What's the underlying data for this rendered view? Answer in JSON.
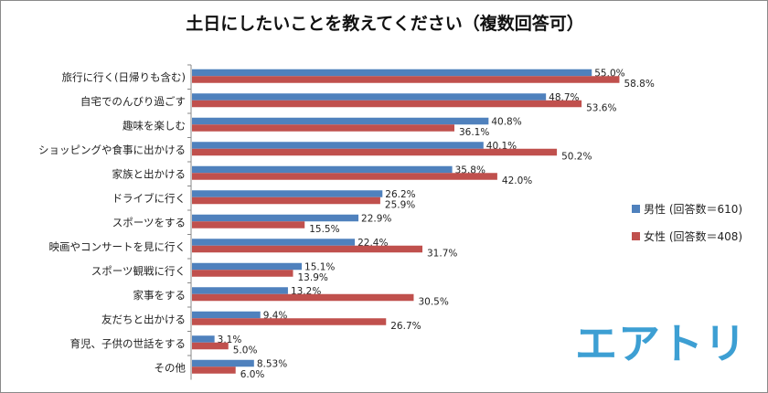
{
  "chart_data": {
    "type": "bar",
    "orientation": "horizontal",
    "title": "土日にしたいことを教えてください（複数回答可）",
    "categories": [
      "旅行に行く(日帰りも含む)",
      "自宅でのんびり過ごす",
      "趣味を楽しむ",
      "ショッピングや食事に出かける",
      "家族と出かける",
      "ドライブに行く",
      "スポーツをする",
      "映画やコンサートを見に行く",
      "スポーツ観戦に行く",
      "家事をする",
      "友だちと出かける",
      "育児、子供の世話をする",
      "その他"
    ],
    "series": [
      {
        "name": "男性 (回答数＝610)",
        "color": "#4f81bd",
        "values": [
          55.0,
          48.7,
          40.8,
          40.1,
          35.8,
          26.2,
          22.9,
          22.4,
          15.1,
          13.2,
          9.4,
          3.1,
          8.53
        ],
        "labels": [
          "55.0%",
          "48.7%",
          "40.8%",
          "40.1%",
          "35.8%",
          "26.2%",
          "22.9%",
          "22.4%",
          "15.1%",
          "13.2%",
          "9.4%",
          "3.1%",
          "8.53%"
        ]
      },
      {
        "name": "女性 (回答数＝408)",
        "color": "#c0504d",
        "values": [
          58.8,
          53.6,
          36.1,
          50.2,
          42.0,
          25.9,
          15.5,
          31.7,
          13.9,
          30.5,
          26.7,
          5.0,
          6.0
        ],
        "labels": [
          "58.8%",
          "53.6%",
          "36.1%",
          "50.2%",
          "42.0%",
          "25.9%",
          "15.5%",
          "31.7%",
          "13.9%",
          "30.5%",
          "26.7%",
          "5.0%",
          "6.0%"
        ]
      }
    ],
    "xlim": [
      0,
      70
    ],
    "grid": false,
    "legend_position": "right"
  },
  "logo": "エアトリ"
}
